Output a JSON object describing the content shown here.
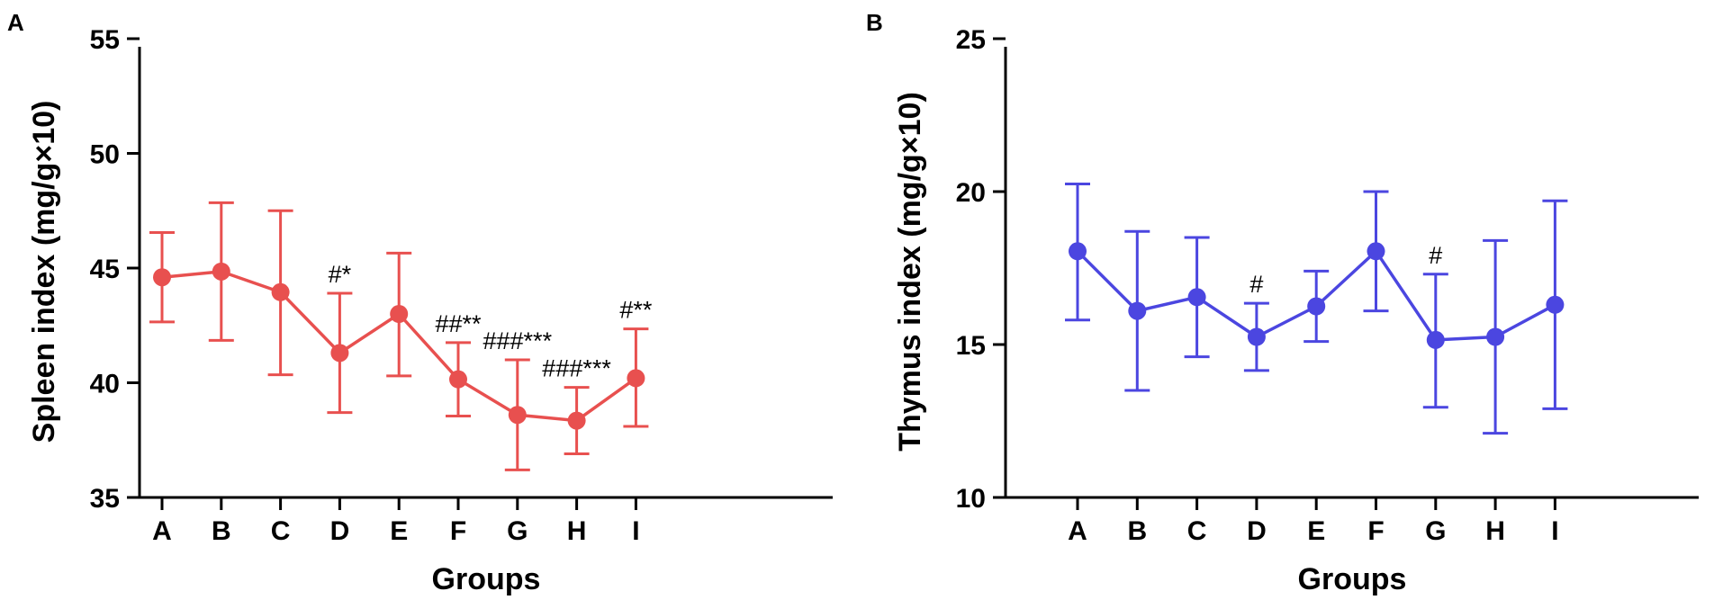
{
  "chart_data": [
    {
      "type": "line",
      "panel_label": "A",
      "color": "#e8504f",
      "title": "",
      "xlabel": "Groups",
      "ylabel": "Spleen index (mg/g×10)",
      "ylim": [
        35,
        55
      ],
      "yticks": [
        "35",
        "40",
        "45",
        "50",
        "55"
      ],
      "categories": [
        "A",
        "B",
        "C",
        "D",
        "E",
        "F",
        "G",
        "H",
        "I"
      ],
      "values": [
        44.6,
        44.85,
        43.95,
        41.3,
        43.0,
        40.15,
        38.6,
        38.35,
        40.2
      ],
      "error_upper": [
        46.55,
        47.85,
        47.5,
        43.9,
        45.65,
        41.75,
        41.0,
        39.8,
        42.35
      ],
      "error_lower": [
        42.65,
        41.85,
        40.35,
        38.7,
        40.3,
        38.55,
        36.2,
        36.9,
        38.1
      ],
      "annotations": [
        {
          "category": "D",
          "text": "#*"
        },
        {
          "category": "F",
          "text": "##**"
        },
        {
          "category": "G",
          "text": "###***"
        },
        {
          "category": "H",
          "text": "###***"
        },
        {
          "category": "I",
          "text": "#**"
        }
      ]
    },
    {
      "type": "line",
      "panel_label": "B",
      "color": "#4b46e0",
      "title": "",
      "xlabel": "Groups",
      "ylabel": "Thymus index (mg/g×10)",
      "ylim": [
        10,
        25
      ],
      "yticks": [
        "10",
        "15",
        "20",
        "25"
      ],
      "categories": [
        "A",
        "B",
        "C",
        "D",
        "E",
        "F",
        "G",
        "H",
        "I"
      ],
      "values": [
        18.05,
        16.1,
        16.55,
        15.25,
        16.25,
        18.05,
        15.15,
        15.25,
        16.3
      ],
      "error_upper": [
        20.25,
        18.7,
        18.5,
        16.35,
        17.4,
        20.0,
        17.3,
        18.4,
        19.7
      ],
      "error_lower": [
        15.8,
        13.5,
        14.6,
        14.15,
        15.1,
        16.1,
        12.95,
        12.1,
        12.9
      ],
      "annotations": [
        {
          "category": "D",
          "text": "#"
        },
        {
          "category": "G",
          "text": "#"
        }
      ]
    }
  ]
}
